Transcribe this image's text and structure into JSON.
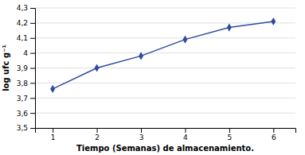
{
  "chart_data": {
    "type": "line",
    "x": [
      1,
      2,
      3,
      4,
      5,
      6
    ],
    "values": [
      3.76,
      3.9,
      3.98,
      4.09,
      4.17,
      4.21
    ],
    "xlabel": "Tiempo (Semanas) de almacenamiento.",
    "ylabel": "log ufc g⁻¹",
    "color": "#2e4a9e",
    "marker": "diamond",
    "xlim": [
      0.6,
      6.5
    ],
    "xticks": [
      1,
      2,
      3,
      4,
      5,
      6
    ],
    "ylim": [
      3.5,
      4.3
    ],
    "yticks": [
      {
        "value": 3.5,
        "label": "3,5"
      },
      {
        "value": 3.6,
        "label": "3,6"
      },
      {
        "value": 3.7,
        "label": "3,7"
      },
      {
        "value": 3.8,
        "label": "3,8"
      },
      {
        "value": 3.9,
        "label": "3,9"
      },
      4,
      {
        "value": 4.1,
        "label": "4,1"
      },
      {
        "value": 4.2,
        "label": "4,2"
      },
      {
        "value": 4.3,
        "label": "4,3"
      }
    ],
    "grid": "y"
  }
}
